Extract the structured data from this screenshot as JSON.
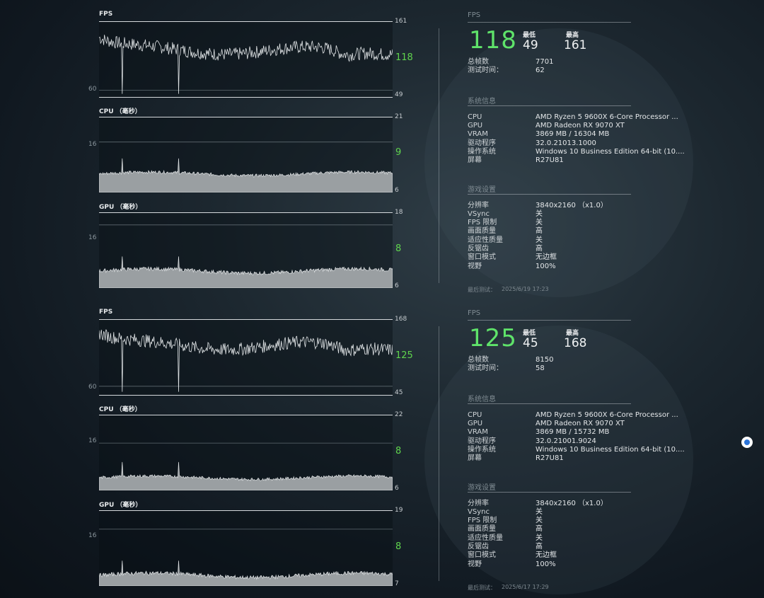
{
  "panels": [
    {
      "fps_label": "FPS",
      "cpu_label": "CPU （毫秒）",
      "gpu_label": "GPU （毫秒）",
      "fps_ticks": {
        "max": "161",
        "grid": "60",
        "min": "49",
        "current": "118"
      },
      "cpu_ticks": {
        "max": "21",
        "grid": "16",
        "min": "6",
        "current": "9"
      },
      "gpu_ticks": {
        "max": "18",
        "grid": "16",
        "min": "6",
        "current": "8"
      },
      "fps_section": "FPS",
      "fps_current": "118",
      "min_label": "最低",
      "min_value": "49",
      "max_label": "最高",
      "max_value": "161",
      "summary": [
        {
          "label": "总帧数",
          "value": "7701"
        },
        {
          "label": "测试时间：",
          "value": "62"
        }
      ],
      "system_section": "系统信息",
      "system": [
        {
          "label": "CPU",
          "value": "AMD Ryzen 5 9600X 6-Core Processor   ..."
        },
        {
          "label": "GPU",
          "value": "AMD Radeon RX 9070 XT"
        },
        {
          "label": "VRAM",
          "value": "3869 MB / 16304 MB"
        },
        {
          "label": "驱动程序",
          "value": "32.0.21013.1000"
        },
        {
          "label": "操作系统",
          "value": "Windows 10 Business Edition 64-bit (10...."
        },
        {
          "label": "屏幕",
          "value": "R27U81"
        }
      ],
      "settings_section": "游戏设置",
      "settings": [
        {
          "label": "分辨率",
          "value": "3840x2160  （x1.0）"
        },
        {
          "label": "VSync",
          "value": "关"
        },
        {
          "label": "FPS 限制",
          "value": "关"
        },
        {
          "label": "画面质量",
          "value": "高"
        },
        {
          "label": "适应性质量",
          "value": "关"
        },
        {
          "label": "反锯齿",
          "value": "高"
        },
        {
          "label": "窗口模式",
          "value": "无边框"
        },
        {
          "label": "视野",
          "value": "100%"
        }
      ],
      "last_test_label": "最后测试：",
      "last_test_value": "2025/6/19 17:23"
    },
    {
      "fps_label": "FPS",
      "cpu_label": "CPU （毫秒）",
      "gpu_label": "GPU （毫秒）",
      "fps_ticks": {
        "max": "168",
        "grid": "60",
        "min": "45",
        "current": "125"
      },
      "cpu_ticks": {
        "max": "22",
        "grid": "16",
        "min": "6",
        "current": "8"
      },
      "gpu_ticks": {
        "max": "19",
        "grid": "16",
        "min": "7",
        "current": "8"
      },
      "fps_section": "FPS",
      "fps_current": "125",
      "min_label": "最低",
      "min_value": "45",
      "max_label": "最高",
      "max_value": "168",
      "summary": [
        {
          "label": "总帧数",
          "value": "8150"
        },
        {
          "label": "测试时间：",
          "value": "58"
        }
      ],
      "system_section": "系统信息",
      "system": [
        {
          "label": "CPU",
          "value": "AMD Ryzen 5 9600X 6-Core Processor   ..."
        },
        {
          "label": "GPU",
          "value": "AMD Radeon RX 9070 XT"
        },
        {
          "label": "VRAM",
          "value": "3869 MB / 15732 MB"
        },
        {
          "label": "驱动程序",
          "value": "32.0.21001.9024"
        },
        {
          "label": "操作系统",
          "value": "Windows 10 Business Edition 64-bit (10...."
        },
        {
          "label": "屏幕",
          "value": "R27U81"
        }
      ],
      "settings_section": "游戏设置",
      "settings": [
        {
          "label": "分辨率",
          "value": "3840x2160  （x1.0）"
        },
        {
          "label": "VSync",
          "value": "关"
        },
        {
          "label": "FPS 限制",
          "value": "关"
        },
        {
          "label": "画面质量",
          "value": "高"
        },
        {
          "label": "适应性质量",
          "value": "关"
        },
        {
          "label": "反锯齿",
          "value": "高"
        },
        {
          "label": "窗口模式",
          "value": "无边框"
        },
        {
          "label": "视野",
          "value": "100%"
        }
      ],
      "last_test_label": "最后测试：",
      "last_test_value": "2025/6/17 17:29"
    }
  ],
  "chart_data": [
    {
      "type": "line",
      "title": "FPS",
      "run": 1,
      "ylim": [
        49,
        161
      ],
      "grid_y": 60,
      "min": 49,
      "max": 161,
      "current": 118
    },
    {
      "type": "area",
      "title": "CPU （毫秒）",
      "run": 1,
      "ylim": [
        6,
        21
      ],
      "grid_y": 16,
      "current": 9
    },
    {
      "type": "area",
      "title": "GPU （毫秒）",
      "run": 1,
      "ylim": [
        6,
        18
      ],
      "grid_y": 16,
      "current": 8
    },
    {
      "type": "line",
      "title": "FPS",
      "run": 2,
      "ylim": [
        45,
        168
      ],
      "grid_y": 60,
      "min": 45,
      "max": 168,
      "current": 125
    },
    {
      "type": "area",
      "title": "CPU （毫秒）",
      "run": 2,
      "ylim": [
        6,
        22
      ],
      "grid_y": 16,
      "current": 8
    },
    {
      "type": "area",
      "title": "GPU （毫秒）",
      "run": 2,
      "ylim": [
        7,
        19
      ],
      "grid_y": 16,
      "current": 8
    }
  ],
  "colors": {
    "accent_green": "#5fe36a",
    "chart_line": "#e0e4e6",
    "area_fill": "#9a9fa2"
  },
  "icons": {
    "floating_button": "assistant-bubble-icon"
  }
}
